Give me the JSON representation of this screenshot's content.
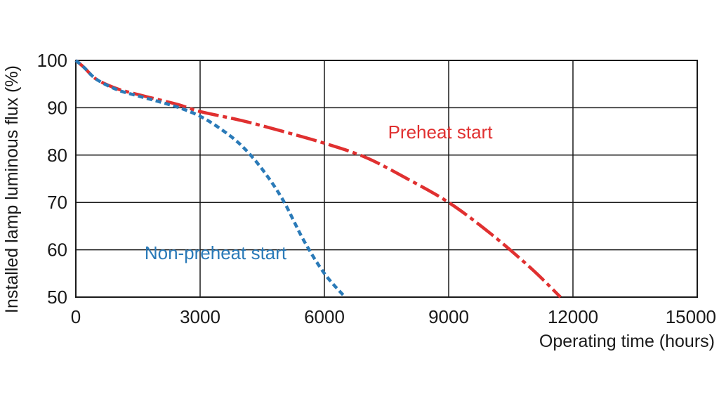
{
  "chart_data": {
    "type": "line",
    "xlabel": "Operating time (hours)",
    "ylabel": "Installed lamp luminous flux  (%)",
    "xlim": [
      0,
      15000
    ],
    "ylim": [
      50,
      100
    ],
    "x_ticks": [
      "0",
      "3000",
      "6000",
      "9000",
      "12000",
      "15000"
    ],
    "y_ticks": [
      "100",
      "90",
      "80",
      "70",
      "60",
      "50"
    ],
    "grid": true,
    "series": [
      {
        "name": "Preheat start",
        "color": "#e03030",
        "line_style": "dash-dot",
        "x": [
          0,
          200,
          500,
          1000,
          1500,
          2000,
          2500,
          3000,
          4000,
          5000,
          6000,
          7000,
          8000,
          9000,
          10000,
          11000,
          11700
        ],
        "y": [
          100,
          98.5,
          96,
          94,
          92.8,
          91.7,
          90.6,
          89.2,
          87.3,
          85,
          82.5,
          79.5,
          75,
          70,
          63.5,
          56,
          50
        ]
      },
      {
        "name": "Non-preheat start",
        "color": "#2a7ab8",
        "line_style": "dashed",
        "x": [
          0,
          200,
          500,
          1000,
          1500,
          2000,
          2500,
          3000,
          3500,
          4000,
          4500,
          5000,
          5500,
          6000,
          6500
        ],
        "y": [
          100,
          98.5,
          96,
          93.8,
          92.5,
          91.3,
          90,
          88.2,
          85.5,
          82,
          77,
          70.5,
          62,
          55,
          50
        ]
      }
    ]
  }
}
